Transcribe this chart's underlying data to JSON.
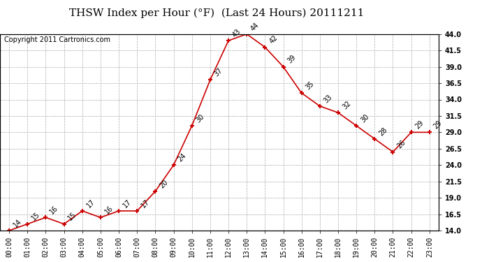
{
  "title": "THSW Index per Hour (°F)  (Last 24 Hours) 20111211",
  "copyright": "Copyright 2011 Cartronics.com",
  "hours": [
    "00:00",
    "01:00",
    "02:00",
    "03:00",
    "04:00",
    "05:00",
    "06:00",
    "07:00",
    "08:00",
    "09:00",
    "10:00",
    "11:00",
    "12:00",
    "13:00",
    "14:00",
    "15:00",
    "16:00",
    "17:00",
    "18:00",
    "19:00",
    "20:00",
    "21:00",
    "22:00",
    "23:00"
  ],
  "values": [
    14,
    15,
    16,
    15,
    17,
    16,
    17,
    17,
    20,
    24,
    30,
    37,
    43,
    44,
    42,
    39,
    35,
    33,
    32,
    30,
    28,
    26,
    29,
    29
  ],
  "ylim_min": 14.0,
  "ylim_max": 44.0,
  "yticks": [
    14.0,
    16.5,
    19.0,
    21.5,
    24.0,
    26.5,
    29.0,
    31.5,
    34.0,
    36.5,
    39.0,
    41.5,
    44.0
  ],
  "line_color": "#cc0000",
  "marker_color": "#cc0000",
  "bg_color": "#ffffff",
  "grid_color": "#aaaaaa",
  "title_fontsize": 11,
  "label_fontsize": 7,
  "annotation_fontsize": 7,
  "copyright_fontsize": 7
}
